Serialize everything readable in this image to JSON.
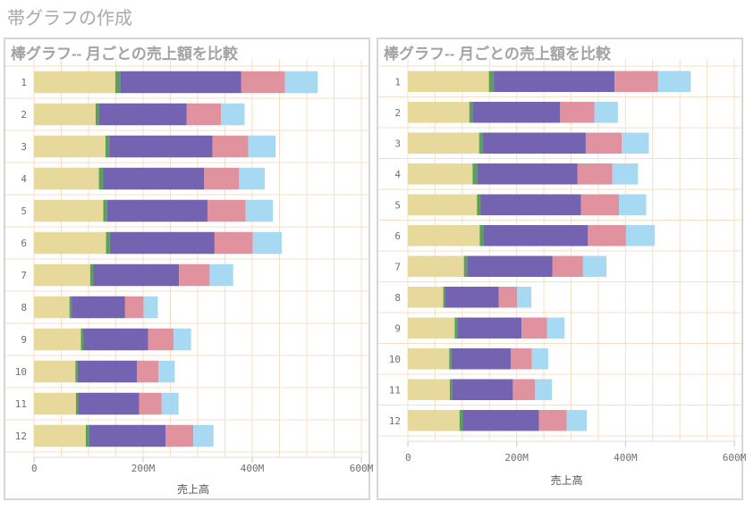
{
  "page_title": "帯グラフの作成",
  "colors": {
    "segment_1": "#e6d99b",
    "segment_2": "#5aa05a",
    "segment_3": "#7363b0",
    "segment_4": "#e0939e",
    "segment_5": "#a8d9f2",
    "gridline": "#f5dfc6",
    "panel_border": "#d6d6d6"
  },
  "chart_data": [
    {
      "type": "bar",
      "orientation": "horizontal",
      "stacked": true,
      "title": "棒グラフ-- 月ごとの売上額を比較",
      "xlabel": "売上高",
      "ylabel": "",
      "xlim": [
        0,
        600
      ],
      "x_unit": "M",
      "xticks": [
        "0",
        "200M",
        "400M",
        "600M"
      ],
      "categories": [
        "1",
        "2",
        "3",
        "4",
        "5",
        "6",
        "7",
        "8",
        "9",
        "10",
        "11",
        "12"
      ],
      "series": [
        {
          "values": [
            149,
            113,
            131,
            119,
            127,
            132,
            103,
            65,
            86,
            76,
            77,
            95
          ]
        },
        {
          "values": [
            9,
            6,
            7,
            8,
            7,
            7,
            6,
            4,
            5,
            4,
            4,
            6
          ]
        },
        {
          "values": [
            222,
            161,
            189,
            185,
            184,
            192,
            157,
            98,
            118,
            109,
            112,
            140
          ]
        },
        {
          "values": [
            80,
            63,
            66,
            64,
            70,
            70,
            56,
            34,
            47,
            39,
            41,
            51
          ]
        },
        {
          "values": [
            60,
            43,
            50,
            47,
            50,
            53,
            43,
            26,
            32,
            30,
            31,
            37
          ]
        }
      ]
    },
    {
      "type": "bar",
      "orientation": "horizontal",
      "stacked": true,
      "title": "棒グラフ-- 月ごとの売上額を比較",
      "xlabel": "売上高",
      "ylabel": "",
      "xlim": [
        0,
        600
      ],
      "x_unit": "M",
      "xticks": [
        "0",
        "200M",
        "400M",
        "600M"
      ],
      "categories": [
        "1",
        "2",
        "3",
        "4",
        "5",
        "6",
        "7",
        "8",
        "9",
        "10",
        "11",
        "12"
      ],
      "series": [
        {
          "values": [
            149,
            113,
            131,
            119,
            127,
            132,
            103,
            65,
            86,
            76,
            77,
            95
          ]
        },
        {
          "values": [
            9,
            6,
            7,
            8,
            7,
            7,
            6,
            4,
            5,
            4,
            4,
            6
          ]
        },
        {
          "values": [
            222,
            161,
            189,
            185,
            184,
            192,
            157,
            98,
            118,
            109,
            112,
            140
          ]
        },
        {
          "values": [
            80,
            63,
            66,
            64,
            70,
            70,
            56,
            34,
            47,
            39,
            41,
            51
          ]
        },
        {
          "values": [
            60,
            43,
            50,
            47,
            50,
            53,
            43,
            26,
            32,
            30,
            31,
            37
          ]
        }
      ]
    }
  ]
}
